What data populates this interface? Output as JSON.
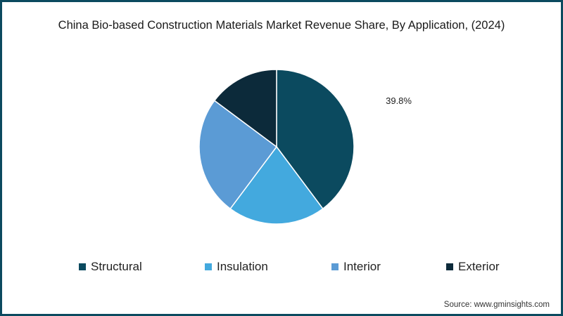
{
  "chart_data": {
    "type": "pie",
    "title": "China Bio-based Construction Materials Market Revenue Share, By Application, (2024)",
    "categories": [
      "Structural",
      "Insulation",
      "Interior",
      "Exterior"
    ],
    "values": [
      39.8,
      20.4,
      25.0,
      14.8
    ],
    "colors": [
      "#0b4a5f",
      "#43a9de",
      "#5b9bd5",
      "#0c2a3a"
    ],
    "data_labels": [
      "39.8%",
      "",
      "",
      ""
    ],
    "legend_position": "bottom"
  },
  "source": "Source: www.gminsights.com"
}
